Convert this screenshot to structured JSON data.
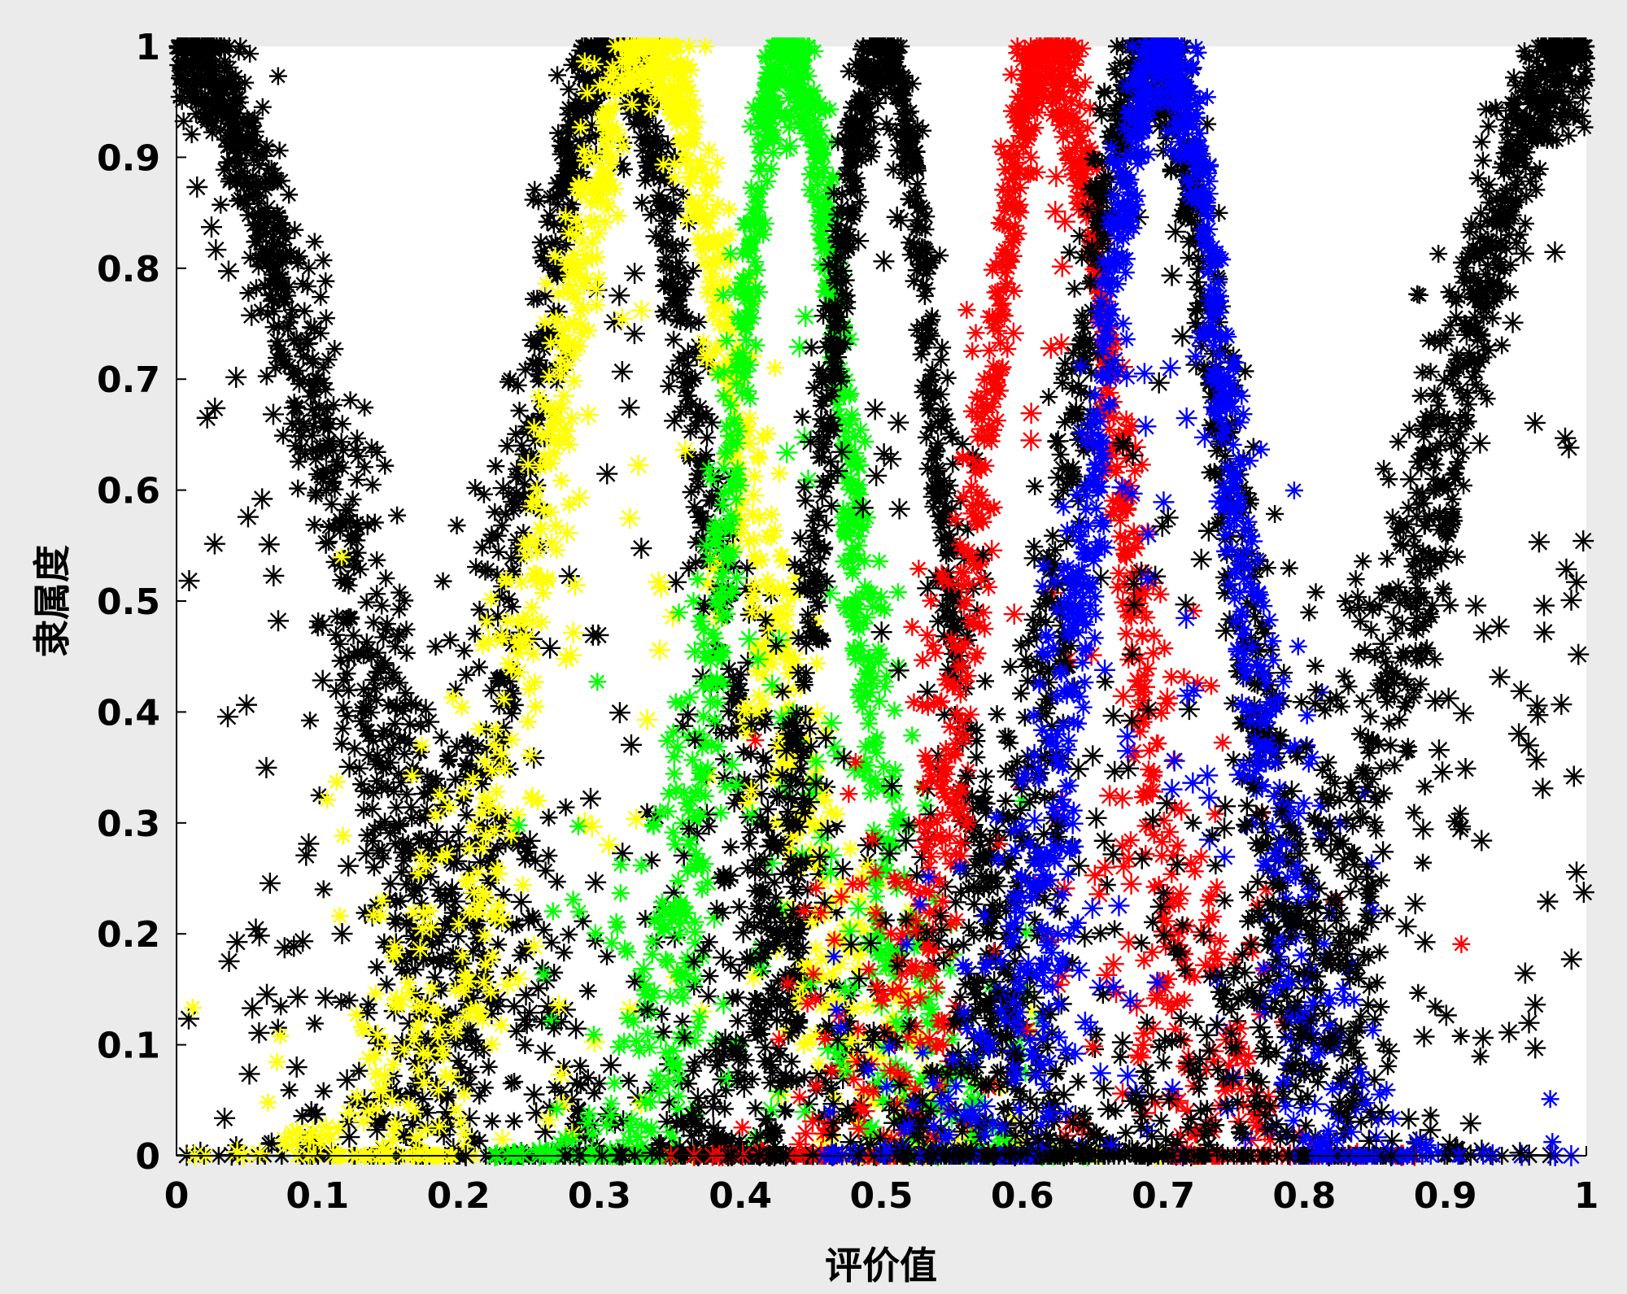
{
  "chart_data": {
    "type": "scatter",
    "title": "",
    "xlabel": "评价值",
    "ylabel": "隶属度",
    "xlim": [
      0,
      1
    ],
    "ylim": [
      0,
      1
    ],
    "xticks": [
      "0",
      "0.1",
      "0.2",
      "0.3",
      "0.4",
      "0.5",
      "0.6",
      "0.7",
      "0.8",
      "0.9",
      "1"
    ],
    "yticks": [
      "0",
      "0.1",
      "0.2",
      "0.3",
      "0.4",
      "0.5",
      "0.6",
      "0.7",
      "0.8",
      "0.9",
      "1"
    ],
    "marker": "asterisk",
    "grid": false,
    "legend": "none",
    "series": [
      {
        "color": "#000000",
        "peak_x": 0.0,
        "width": 0.15,
        "shape": "right-half membership curve with scatter",
        "values": [
          [
            0.0,
            1.0
          ],
          [
            0.03,
            0.97
          ],
          [
            0.05,
            0.88
          ],
          [
            0.08,
            0.78
          ],
          [
            0.1,
            0.68
          ],
          [
            0.12,
            0.6
          ],
          [
            0.14,
            0.5
          ],
          [
            0.16,
            0.4
          ],
          [
            0.18,
            0.3
          ],
          [
            0.2,
            0.2
          ],
          [
            0.22,
            0.12
          ],
          [
            0.25,
            0.05
          ],
          [
            0.27,
            0.0
          ]
        ]
      },
      {
        "color": "#000000",
        "peak_x": 0.31,
        "width": 0.09,
        "shape": "membership curve with scatter",
        "values": [
          [
            0.2,
            0.2
          ],
          [
            0.23,
            0.4
          ],
          [
            0.26,
            0.65
          ],
          [
            0.28,
            0.85
          ],
          [
            0.31,
            1.0
          ],
          [
            0.34,
            0.88
          ],
          [
            0.36,
            0.7
          ],
          [
            0.38,
            0.5
          ],
          [
            0.4,
            0.3
          ],
          [
            0.42,
            0.15
          ],
          [
            0.45,
            0.03
          ]
        ]
      },
      {
        "color": "#ffff00",
        "peak_x": 0.335,
        "width": 0.1,
        "shape": "membership curve with scatter",
        "values": [
          [
            0.02,
            0.02
          ],
          [
            0.15,
            0.2
          ],
          [
            0.22,
            0.45
          ],
          [
            0.27,
            0.75
          ],
          [
            0.3,
            0.92
          ],
          [
            0.335,
            1.0
          ],
          [
            0.37,
            0.92
          ],
          [
            0.4,
            0.72
          ],
          [
            0.43,
            0.45
          ],
          [
            0.47,
            0.22
          ],
          [
            0.52,
            0.05
          ],
          [
            0.6,
            0.0
          ]
        ]
      },
      {
        "color": "#00ff00",
        "peak_x": 0.435,
        "width": 0.06,
        "shape": "membership curve with scatter",
        "values": [
          [
            0.32,
            0.05
          ],
          [
            0.36,
            0.25
          ],
          [
            0.39,
            0.5
          ],
          [
            0.41,
            0.75
          ],
          [
            0.435,
            1.0
          ],
          [
            0.46,
            0.82
          ],
          [
            0.48,
            0.6
          ],
          [
            0.5,
            0.4
          ],
          [
            0.53,
            0.2
          ],
          [
            0.56,
            0.05
          ],
          [
            0.6,
            0.0
          ]
        ]
      },
      {
        "color": "#000000",
        "peak_x": 0.5,
        "width": 0.06,
        "shape": "membership curve with scatter",
        "values": [
          [
            0.38,
            0.05
          ],
          [
            0.42,
            0.3
          ],
          [
            0.45,
            0.6
          ],
          [
            0.47,
            0.85
          ],
          [
            0.5,
            1.0
          ],
          [
            0.53,
            0.88
          ],
          [
            0.55,
            0.6
          ],
          [
            0.57,
            0.35
          ],
          [
            0.59,
            0.15
          ],
          [
            0.62,
            0.02
          ]
        ]
      },
      {
        "color": "#ff0000",
        "peak_x": 0.62,
        "width": 0.07,
        "shape": "membership curve with scatter",
        "values": [
          [
            0.5,
            0.02
          ],
          [
            0.53,
            0.2
          ],
          [
            0.56,
            0.45
          ],
          [
            0.59,
            0.8
          ],
          [
            0.62,
            1.0
          ],
          [
            0.65,
            0.85
          ],
          [
            0.68,
            0.55
          ],
          [
            0.7,
            0.35
          ],
          [
            0.73,
            0.15
          ],
          [
            0.77,
            0.02
          ]
        ]
      },
      {
        "color": "#000000",
        "peak_x": 0.69,
        "width": 0.08,
        "shape": "membership curve with scatter",
        "values": [
          [
            0.58,
            0.2
          ],
          [
            0.62,
            0.5
          ],
          [
            0.65,
            0.8
          ],
          [
            0.69,
            1.0
          ],
          [
            0.72,
            0.85
          ],
          [
            0.76,
            0.55
          ],
          [
            0.8,
            0.3
          ],
          [
            0.84,
            0.12
          ],
          [
            0.88,
            0.02
          ]
        ]
      },
      {
        "color": "#0000ff",
        "peak_x": 0.7,
        "width": 0.07,
        "shape": "membership curve with scatter",
        "values": [
          [
            0.58,
            0.05
          ],
          [
            0.62,
            0.3
          ],
          [
            0.65,
            0.6
          ],
          [
            0.68,
            0.88
          ],
          [
            0.7,
            1.0
          ],
          [
            0.73,
            0.88
          ],
          [
            0.76,
            0.6
          ],
          [
            0.79,
            0.3
          ],
          [
            0.82,
            0.1
          ],
          [
            0.86,
            0.02
          ]
        ]
      },
      {
        "color": "#000000",
        "peak_x": 1.0,
        "width": 0.15,
        "shape": "left-half membership curve with scatter",
        "values": [
          [
            0.75,
            0.02
          ],
          [
            0.8,
            0.2
          ],
          [
            0.84,
            0.4
          ],
          [
            0.87,
            0.55
          ],
          [
            0.9,
            0.7
          ],
          [
            0.93,
            0.85
          ],
          [
            0.96,
            0.95
          ],
          [
            1.0,
            1.0
          ]
        ]
      }
    ]
  }
}
